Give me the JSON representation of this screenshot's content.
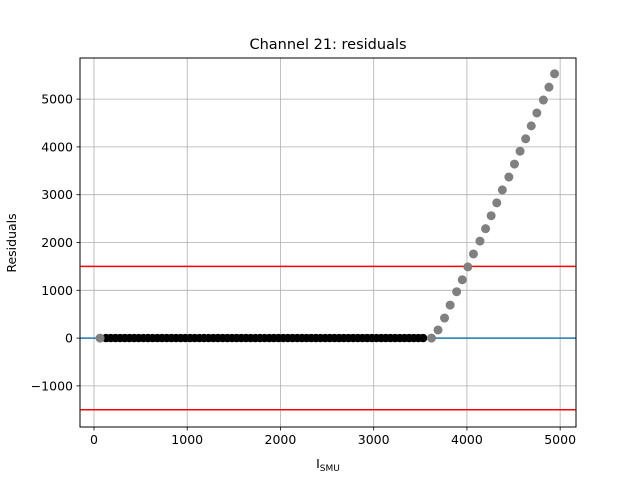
{
  "chart_data": {
    "type": "scatter",
    "title": "Channel 21: residuals",
    "xlabel": {
      "main": "I",
      "sub": "SMU"
    },
    "ylabel": "Residuals",
    "xlim": [
      -150,
      5170
    ],
    "ylim": [
      -1860,
      5860
    ],
    "xticks": [
      0,
      1000,
      2000,
      3000,
      4000,
      5000
    ],
    "yticks": [
      -1000,
      0,
      1000,
      2000,
      3000,
      4000,
      5000
    ],
    "xtick_labels": [
      "0",
      "1000",
      "2000",
      "3000",
      "4000",
      "5000"
    ],
    "ytick_labels": [
      "−1000",
      "0",
      "1000",
      "2000",
      "3000",
      "4000",
      "5000"
    ],
    "grid": true,
    "colors": {
      "accepted": "#000000",
      "rejected": "#808080",
      "zero_line": "#1f77b4",
      "threshold_line": "#ff0000",
      "grid": "#b0b0b0"
    },
    "hlines": [
      {
        "y": 0,
        "role": "zero",
        "color": "#1f77b4"
      },
      {
        "y": 1500,
        "role": "upper-threshold",
        "color": "#ff0000"
      },
      {
        "y": -1500,
        "role": "lower-threshold",
        "color": "#ff0000"
      }
    ],
    "accepted_points": {
      "x_start": 130,
      "x_step": 50,
      "count": 69,
      "y": 0
    },
    "rejected_points": [
      {
        "x": 65,
        "y": 0
      },
      {
        "x": 3620,
        "y": 0
      },
      {
        "x": 3690,
        "y": 170
      },
      {
        "x": 3760,
        "y": 420
      },
      {
        "x": 3820,
        "y": 690
      },
      {
        "x": 3890,
        "y": 970
      },
      {
        "x": 3950,
        "y": 1220
      },
      {
        "x": 4010,
        "y": 1490
      },
      {
        "x": 4070,
        "y": 1760
      },
      {
        "x": 4140,
        "y": 2030
      },
      {
        "x": 4200,
        "y": 2290
      },
      {
        "x": 4260,
        "y": 2560
      },
      {
        "x": 4320,
        "y": 2830
      },
      {
        "x": 4380,
        "y": 3100
      },
      {
        "x": 4450,
        "y": 3370
      },
      {
        "x": 4510,
        "y": 3640
      },
      {
        "x": 4570,
        "y": 3910
      },
      {
        "x": 4630,
        "y": 4170
      },
      {
        "x": 4690,
        "y": 4440
      },
      {
        "x": 4750,
        "y": 4710
      },
      {
        "x": 4820,
        "y": 4980
      },
      {
        "x": 4880,
        "y": 5250
      },
      {
        "x": 4940,
        "y": 5530
      }
    ]
  }
}
